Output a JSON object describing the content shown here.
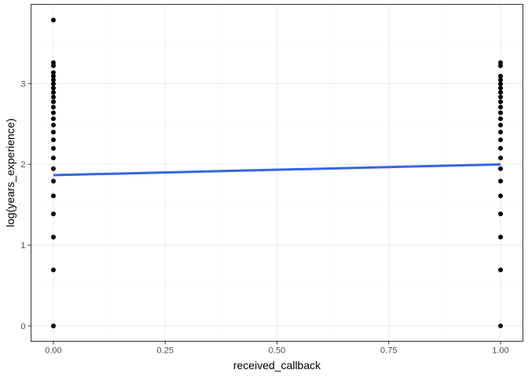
{
  "chart_data": {
    "type": "scatter",
    "title": "",
    "xlabel": "received_callback",
    "ylabel": "log(years_experience)",
    "xlim": [
      -0.05,
      1.05
    ],
    "ylim": [
      -0.19,
      3.98
    ],
    "x_ticks": [
      0.0,
      0.25,
      0.5,
      0.75,
      1.0
    ],
    "x_tick_labels": [
      "0.00",
      "0.25",
      "0.50",
      "0.75",
      "1.00"
    ],
    "y_ticks": [
      0,
      1,
      2,
      3
    ],
    "y_tick_labels": [
      "0",
      "1",
      "2",
      "3"
    ],
    "grid": true,
    "legend": "none",
    "series": [
      {
        "x": 0,
        "y": [
          0,
          0.693,
          1.099,
          1.386,
          1.609,
          1.792,
          1.946,
          2.079,
          2.197,
          2.303,
          2.398,
          2.485,
          2.565,
          2.639,
          2.708,
          2.773,
          2.833,
          2.89,
          2.944,
          2.996,
          3.045,
          3.091,
          3.135,
          3.219,
          3.258,
          3.784
        ]
      },
      {
        "x": 1,
        "y": [
          0,
          0.693,
          1.099,
          1.386,
          1.609,
          1.792,
          1.946,
          2.079,
          2.197,
          2.303,
          2.398,
          2.485,
          2.565,
          2.639,
          2.708,
          2.773,
          2.833,
          2.89,
          2.944,
          2.996,
          3.045,
          3.091,
          3.219,
          3.258
        ]
      }
    ],
    "fit_line": {
      "x": [
        0,
        1
      ],
      "y": [
        1.866,
        1.999
      ],
      "color": "#3366e6"
    },
    "colors": {
      "points": "#000000",
      "panel_border": "#333333",
      "grid_major": "#ebebeb",
      "grid_minor": "#f5f5f5"
    }
  }
}
